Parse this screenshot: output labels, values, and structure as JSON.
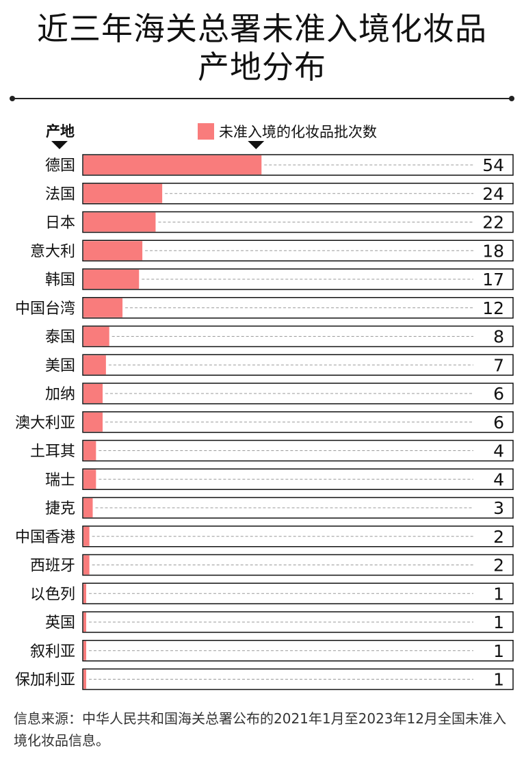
{
  "title": {
    "line1": "近三年海关总署未准入境化妆品",
    "line2": "产地分布"
  },
  "footnote": "信息来源：中华人民共和国海关总署公布的2021年1月至2023年12月全国未准入境化妆品信息。",
  "chart_data": {
    "type": "bar",
    "orientation": "horizontal",
    "ylabel": "产地",
    "legend": "未准入境的化妆品批次数",
    "legend_position": "top",
    "bar_color": "#F97C7C",
    "xlim": [
      0,
      130
    ],
    "grid": false,
    "categories": [
      "德国",
      "法国",
      "日本",
      "意大利",
      "韩国",
      "中国台湾",
      "泰国",
      "美国",
      "加纳",
      "澳大利亚",
      "土耳其",
      "瑞士",
      "捷克",
      "中国香港",
      "西班牙",
      "以色列",
      "英国",
      "叙利亚",
      "保加利亚"
    ],
    "values": [
      54,
      24,
      22,
      18,
      17,
      12,
      8,
      7,
      6,
      6,
      4,
      4,
      3,
      2,
      2,
      1,
      1,
      1,
      1
    ]
  }
}
